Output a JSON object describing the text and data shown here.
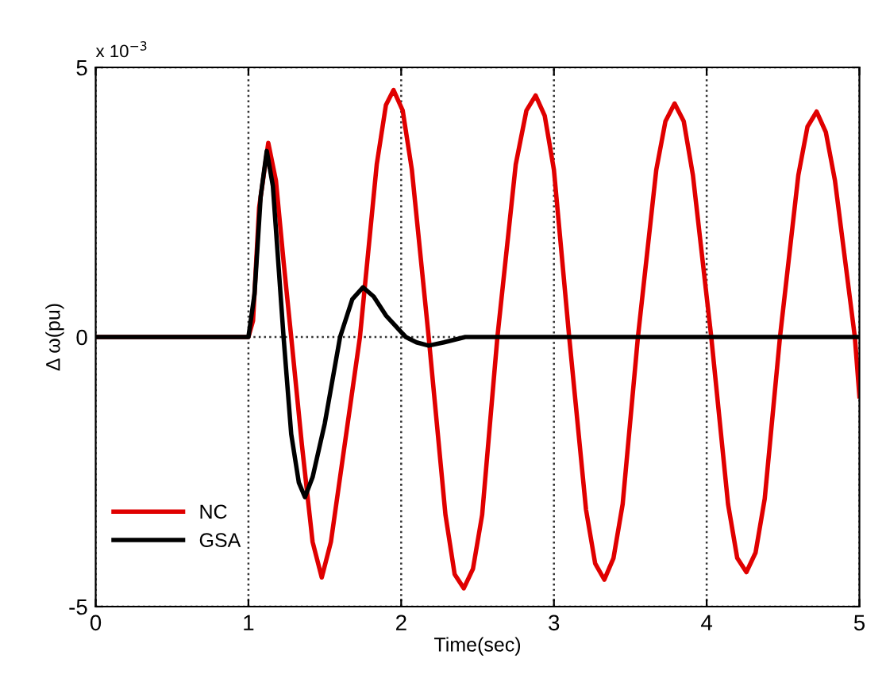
{
  "chart_data": {
    "type": "line",
    "xlabel": "Time(sec)",
    "ylabel": "Δ ω(pu)",
    "annotations": [
      "x 10$^{−3}$"
    ],
    "xlim": [
      0,
      5
    ],
    "xticks": [
      0,
      1,
      2,
      3,
      4,
      5
    ],
    "ylim": [
      -5,
      5
    ],
    "yticks": [
      -5,
      0,
      5
    ],
    "grid": true,
    "legend": "bottom left",
    "line_style": "solid",
    "series": [
      {
        "name": "NC",
        "color": "#e00000",
        "x": [
          0,
          1.0,
          1.03,
          1.07,
          1.13,
          1.18,
          1.23,
          1.28,
          1.35,
          1.42,
          1.48,
          1.54,
          1.61,
          1.73,
          1.84,
          1.9,
          1.95,
          2.01,
          2.07,
          2.18,
          2.29,
          2.35,
          2.41,
          2.47,
          2.53,
          2.63,
          2.75,
          2.82,
          2.88,
          2.94,
          3.0,
          3.1,
          3.21,
          3.27,
          3.33,
          3.39,
          3.45,
          3.55,
          3.67,
          3.73,
          3.79,
          3.85,
          3.91,
          4.03,
          4.14,
          4.2,
          4.26,
          4.32,
          4.38,
          4.48,
          4.6,
          4.66,
          4.72,
          4.78,
          4.84,
          4.97,
          5.0
        ],
        "values": [
          0,
          0,
          0.3,
          2.4,
          3.6,
          2.9,
          1.4,
          0,
          -2.0,
          -3.8,
          -4.46,
          -3.8,
          -2.4,
          0,
          3.2,
          4.3,
          4.58,
          4.2,
          3.1,
          0,
          -3.3,
          -4.4,
          -4.66,
          -4.3,
          -3.3,
          0,
          3.2,
          4.2,
          4.48,
          4.1,
          3.1,
          0,
          -3.2,
          -4.2,
          -4.5,
          -4.1,
          -3.1,
          0,
          3.1,
          4.0,
          4.33,
          4.0,
          3.0,
          0,
          -3.1,
          -4.1,
          -4.36,
          -4.0,
          -3.0,
          0,
          3.0,
          3.9,
          4.18,
          3.8,
          2.9,
          0,
          -1.1
        ]
      },
      {
        "name": "GSA",
        "color": "#000000",
        "x": [
          0,
          1.0,
          1.04,
          1.08,
          1.12,
          1.16,
          1.2,
          1.23,
          1.28,
          1.33,
          1.37,
          1.42,
          1.5,
          1.6,
          1.68,
          1.75,
          1.82,
          1.9,
          2.03,
          2.1,
          2.18,
          2.28,
          2.42,
          5.0
        ],
        "values": [
          0,
          0,
          0.8,
          2.6,
          3.45,
          2.8,
          1.2,
          0,
          -1.8,
          -2.7,
          -2.97,
          -2.6,
          -1.6,
          0,
          0.7,
          0.92,
          0.75,
          0.4,
          0,
          -0.1,
          -0.16,
          -0.1,
          0,
          0
        ]
      }
    ]
  }
}
